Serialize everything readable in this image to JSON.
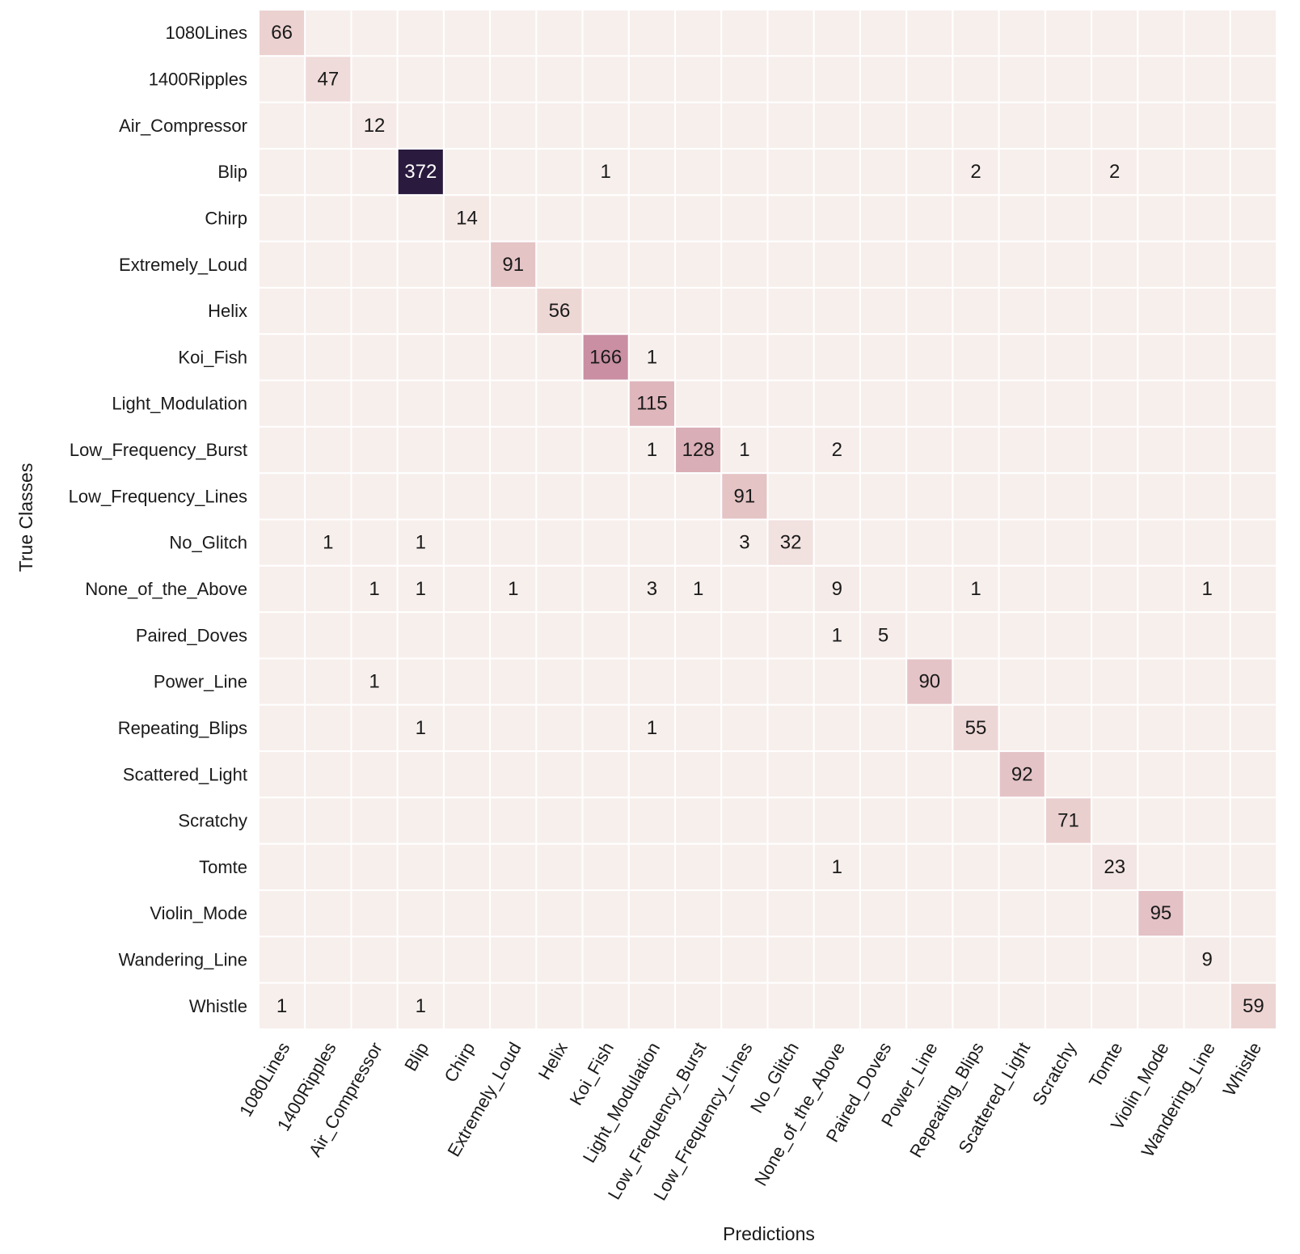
{
  "chart_data": {
    "type": "heatmap",
    "title": "",
    "xlabel": "Predictions",
    "ylabel": "True Classes",
    "row_labels": [
      "1080Lines",
      "1400Ripples",
      "Air_Compressor",
      "Blip",
      "Chirp",
      "Extremely_Loud",
      "Helix",
      "Koi_Fish",
      "Light_Modulation",
      "Low_Frequency_Burst",
      "Low_Frequency_Lines",
      "No_Glitch",
      "None_of_the_Above",
      "Paired_Doves",
      "Power_Line",
      "Repeating_Blips",
      "Scattered_Light",
      "Scratchy",
      "Tomte",
      "Violin_Mode",
      "Wandering_Line",
      "Whistle"
    ],
    "col_labels": [
      "1080Lines",
      "1400Ripples",
      "Air_Compressor",
      "Blip",
      "Chirp",
      "Extremely_Loud",
      "Helix",
      "Koi_Fish",
      "Light_Modulation",
      "Low_Frequency_Burst",
      "Low_Frequency_Lines",
      "No_Glitch",
      "None_of_the_Above",
      "Paired_Doves",
      "Power_Line",
      "Repeating_Blips",
      "Scattered_Light",
      "Scratchy",
      "Tomte",
      "Violin_Mode",
      "Wandering_Line",
      "Whistle"
    ],
    "matrix": [
      [
        66,
        0,
        0,
        0,
        0,
        0,
        0,
        0,
        0,
        0,
        0,
        0,
        0,
        0,
        0,
        0,
        0,
        0,
        0,
        0,
        0,
        0
      ],
      [
        0,
        47,
        0,
        0,
        0,
        0,
        0,
        0,
        0,
        0,
        0,
        0,
        0,
        0,
        0,
        0,
        0,
        0,
        0,
        0,
        0,
        0
      ],
      [
        0,
        0,
        12,
        0,
        0,
        0,
        0,
        0,
        0,
        0,
        0,
        0,
        0,
        0,
        0,
        0,
        0,
        0,
        0,
        0,
        0,
        0
      ],
      [
        0,
        0,
        0,
        372,
        0,
        0,
        0,
        1,
        0,
        0,
        0,
        0,
        0,
        0,
        0,
        2,
        0,
        0,
        2,
        0,
        0,
        0
      ],
      [
        0,
        0,
        0,
        0,
        14,
        0,
        0,
        0,
        0,
        0,
        0,
        0,
        0,
        0,
        0,
        0,
        0,
        0,
        0,
        0,
        0,
        0
      ],
      [
        0,
        0,
        0,
        0,
        0,
        91,
        0,
        0,
        0,
        0,
        0,
        0,
        0,
        0,
        0,
        0,
        0,
        0,
        0,
        0,
        0,
        0
      ],
      [
        0,
        0,
        0,
        0,
        0,
        0,
        56,
        0,
        0,
        0,
        0,
        0,
        0,
        0,
        0,
        0,
        0,
        0,
        0,
        0,
        0,
        0
      ],
      [
        0,
        0,
        0,
        0,
        0,
        0,
        0,
        166,
        1,
        0,
        0,
        0,
        0,
        0,
        0,
        0,
        0,
        0,
        0,
        0,
        0,
        0
      ],
      [
        0,
        0,
        0,
        0,
        0,
        0,
        0,
        0,
        115,
        0,
        0,
        0,
        0,
        0,
        0,
        0,
        0,
        0,
        0,
        0,
        0,
        0
      ],
      [
        0,
        0,
        0,
        0,
        0,
        0,
        0,
        0,
        1,
        128,
        1,
        0,
        2,
        0,
        0,
        0,
        0,
        0,
        0,
        0,
        0,
        0
      ],
      [
        0,
        0,
        0,
        0,
        0,
        0,
        0,
        0,
        0,
        0,
        91,
        0,
        0,
        0,
        0,
        0,
        0,
        0,
        0,
        0,
        0,
        0
      ],
      [
        0,
        1,
        0,
        1,
        0,
        0,
        0,
        0,
        0,
        0,
        3,
        32,
        0,
        0,
        0,
        0,
        0,
        0,
        0,
        0,
        0,
        0
      ],
      [
        0,
        0,
        1,
        1,
        0,
        1,
        0,
        0,
        3,
        1,
        0,
        0,
        9,
        0,
        0,
        1,
        0,
        0,
        0,
        0,
        1,
        0
      ],
      [
        0,
        0,
        0,
        0,
        0,
        0,
        0,
        0,
        0,
        0,
        0,
        0,
        1,
        5,
        0,
        0,
        0,
        0,
        0,
        0,
        0,
        0
      ],
      [
        0,
        0,
        1,
        0,
        0,
        0,
        0,
        0,
        0,
        0,
        0,
        0,
        0,
        0,
        90,
        0,
        0,
        0,
        0,
        0,
        0,
        0
      ],
      [
        0,
        0,
        0,
        1,
        0,
        0,
        0,
        0,
        1,
        0,
        0,
        0,
        0,
        0,
        0,
        55,
        0,
        0,
        0,
        0,
        0,
        0
      ],
      [
        0,
        0,
        0,
        0,
        0,
        0,
        0,
        0,
        0,
        0,
        0,
        0,
        0,
        0,
        0,
        0,
        92,
        0,
        0,
        0,
        0,
        0
      ],
      [
        0,
        0,
        0,
        0,
        0,
        0,
        0,
        0,
        0,
        0,
        0,
        0,
        0,
        0,
        0,
        0,
        0,
        71,
        0,
        0,
        0,
        0
      ],
      [
        0,
        0,
        0,
        0,
        0,
        0,
        0,
        0,
        0,
        0,
        0,
        0,
        1,
        0,
        0,
        0,
        0,
        0,
        23,
        0,
        0,
        0
      ],
      [
        0,
        0,
        0,
        0,
        0,
        0,
        0,
        0,
        0,
        0,
        0,
        0,
        0,
        0,
        0,
        0,
        0,
        0,
        0,
        95,
        0,
        0
      ],
      [
        0,
        0,
        0,
        0,
        0,
        0,
        0,
        0,
        0,
        0,
        0,
        0,
        0,
        0,
        0,
        0,
        0,
        0,
        0,
        0,
        9,
        0
      ],
      [
        1,
        0,
        0,
        1,
        0,
        0,
        0,
        0,
        0,
        0,
        0,
        0,
        0,
        0,
        0,
        0,
        0,
        0,
        0,
        0,
        0,
        59
      ]
    ],
    "value_range": [
      0,
      372
    ],
    "zero_cells_labeled": false,
    "colormap": [
      "#f7efec",
      "#ecd4d3",
      "#dcb1b8",
      "#c27f99",
      "#8d5579",
      "#5b3661",
      "#2a1a3e"
    ],
    "grid_line_color": "#ffffff",
    "text_colors": {
      "light_cell": "#1a1a1a",
      "dark_cell": "#ffffff"
    },
    "legend": "none"
  }
}
